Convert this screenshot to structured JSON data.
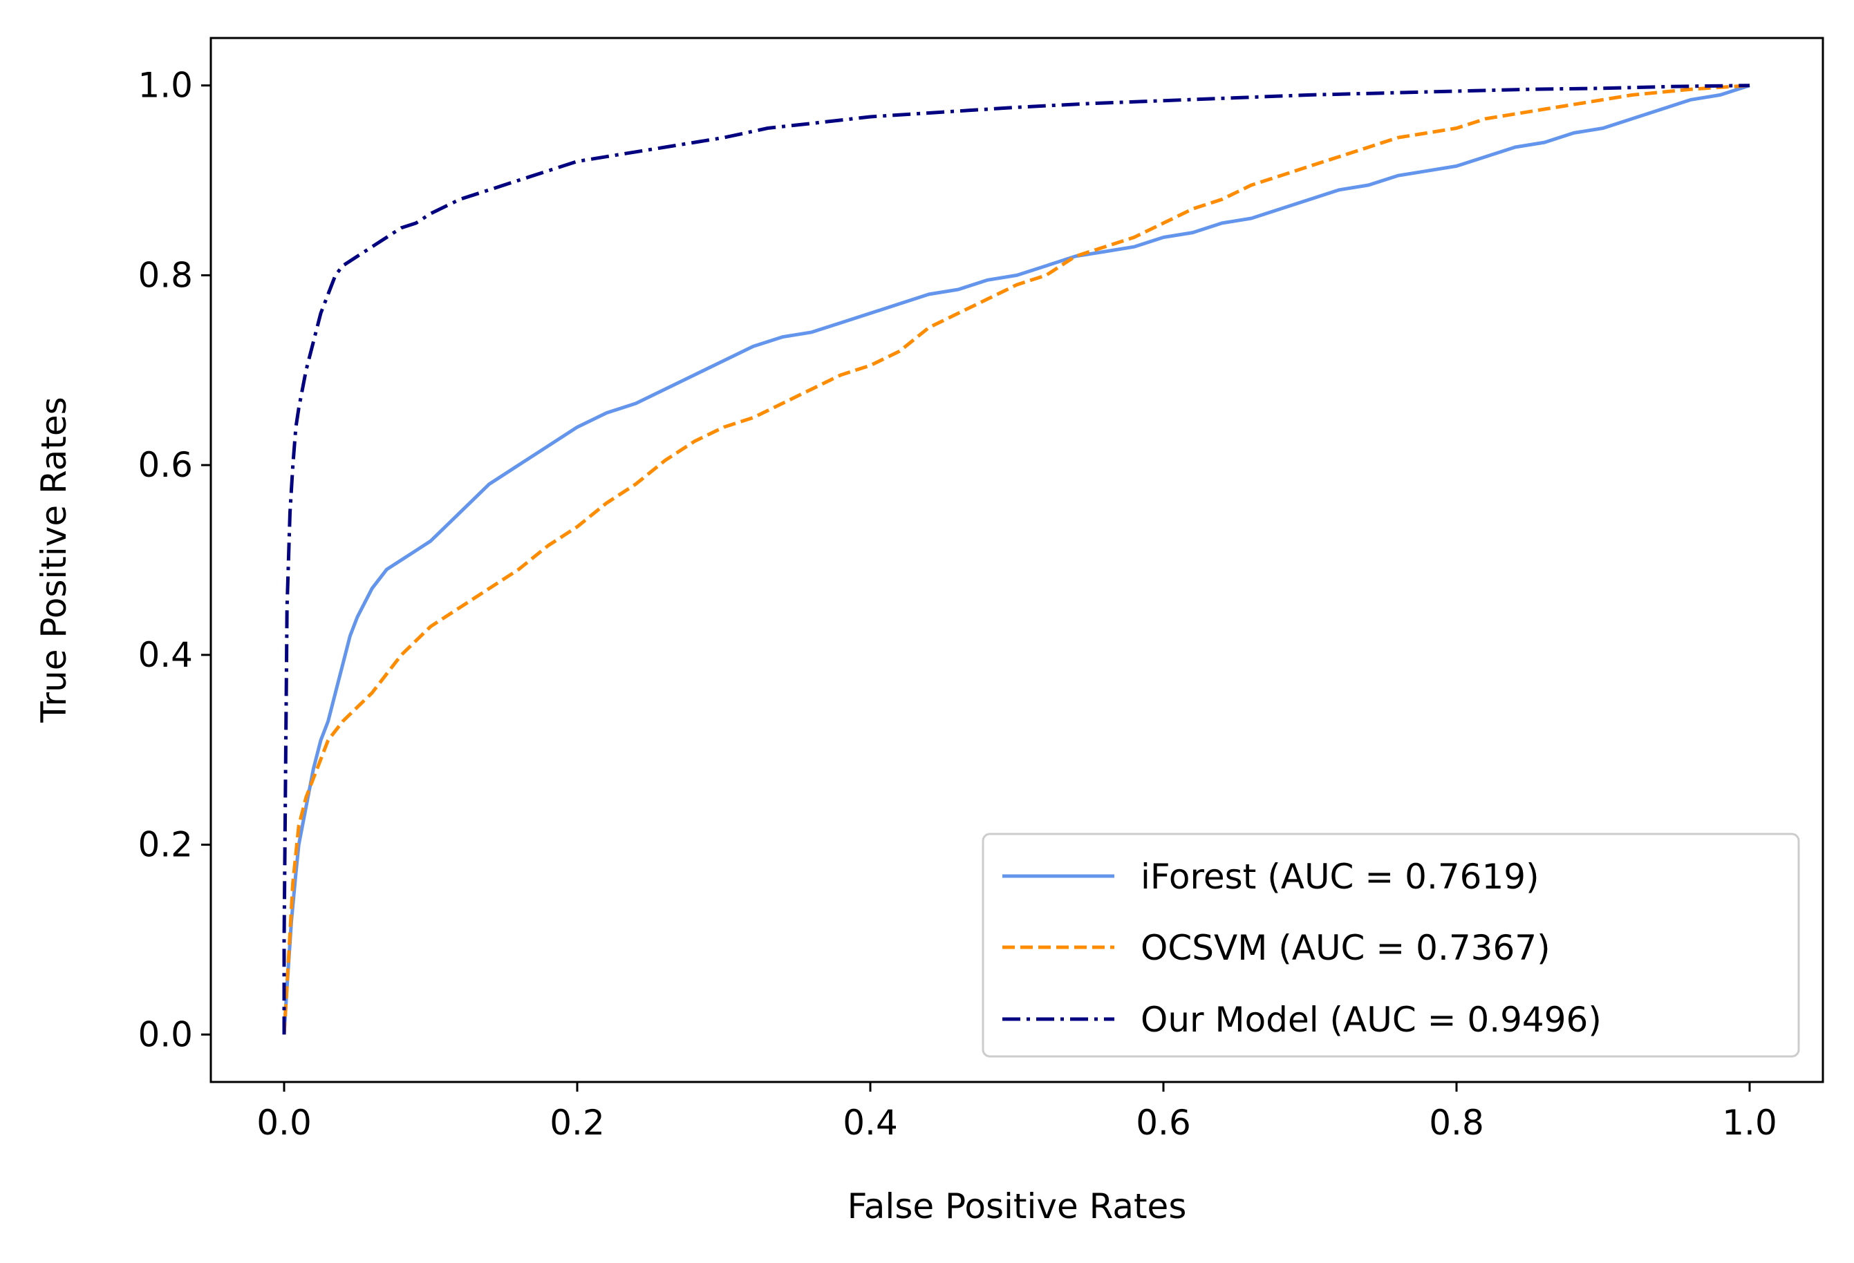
{
  "chart_data": {
    "type": "line",
    "title": "",
    "xlabel": "False Positive Rates",
    "ylabel": "True Positive Rates",
    "xlim": [
      -0.05,
      1.05
    ],
    "ylim": [
      -0.05,
      1.05
    ],
    "xticks": [
      "0.0",
      "0.2",
      "0.4",
      "0.6",
      "0.8",
      "1.0"
    ],
    "yticks": [
      "0.0",
      "0.2",
      "0.4",
      "0.6",
      "0.8",
      "1.0"
    ],
    "xtick_values": [
      0.0,
      0.2,
      0.4,
      0.6,
      0.8,
      1.0
    ],
    "ytick_values": [
      0.0,
      0.2,
      0.4,
      0.6,
      0.8,
      1.0
    ],
    "grid": false,
    "legend_position": "lower-right",
    "series": [
      {
        "name": "iForest (AUC = 0.7619)",
        "color": "#6495ED",
        "style": "solid",
        "x": [
          0.0,
          0.002,
          0.005,
          0.008,
          0.01,
          0.015,
          0.02,
          0.025,
          0.03,
          0.035,
          0.04,
          0.045,
          0.05,
          0.06,
          0.07,
          0.08,
          0.09,
          0.1,
          0.12,
          0.14,
          0.16,
          0.18,
          0.2,
          0.22,
          0.24,
          0.26,
          0.28,
          0.3,
          0.32,
          0.34,
          0.36,
          0.38,
          0.4,
          0.42,
          0.44,
          0.46,
          0.48,
          0.5,
          0.52,
          0.54,
          0.56,
          0.58,
          0.6,
          0.62,
          0.64,
          0.66,
          0.68,
          0.7,
          0.72,
          0.74,
          0.76,
          0.78,
          0.8,
          0.82,
          0.84,
          0.86,
          0.88,
          0.9,
          0.92,
          0.94,
          0.96,
          0.98,
          1.0
        ],
        "y": [
          0.0,
          0.05,
          0.12,
          0.17,
          0.2,
          0.24,
          0.28,
          0.31,
          0.33,
          0.36,
          0.39,
          0.42,
          0.44,
          0.47,
          0.49,
          0.5,
          0.51,
          0.52,
          0.55,
          0.58,
          0.6,
          0.62,
          0.64,
          0.655,
          0.665,
          0.68,
          0.695,
          0.71,
          0.725,
          0.735,
          0.74,
          0.75,
          0.76,
          0.77,
          0.78,
          0.785,
          0.795,
          0.8,
          0.81,
          0.82,
          0.825,
          0.83,
          0.84,
          0.845,
          0.855,
          0.86,
          0.87,
          0.88,
          0.89,
          0.895,
          0.905,
          0.91,
          0.915,
          0.925,
          0.935,
          0.94,
          0.95,
          0.955,
          0.965,
          0.975,
          0.985,
          0.99,
          1.0
        ]
      },
      {
        "name": "OCSVM (AUC = 0.7367)",
        "color": "#FF8C00",
        "style": "dashed",
        "x": [
          0.0,
          0.003,
          0.006,
          0.01,
          0.015,
          0.02,
          0.025,
          0.03,
          0.04,
          0.05,
          0.06,
          0.07,
          0.08,
          0.1,
          0.12,
          0.14,
          0.16,
          0.18,
          0.2,
          0.22,
          0.24,
          0.26,
          0.28,
          0.3,
          0.32,
          0.34,
          0.36,
          0.38,
          0.4,
          0.42,
          0.44,
          0.46,
          0.48,
          0.5,
          0.52,
          0.54,
          0.56,
          0.58,
          0.6,
          0.62,
          0.64,
          0.66,
          0.68,
          0.7,
          0.72,
          0.74,
          0.76,
          0.78,
          0.8,
          0.82,
          0.84,
          0.86,
          0.88,
          0.9,
          0.92,
          0.94,
          0.96,
          0.98,
          1.0
        ],
        "y": [
          0.0,
          0.08,
          0.16,
          0.22,
          0.25,
          0.27,
          0.29,
          0.31,
          0.33,
          0.345,
          0.36,
          0.38,
          0.4,
          0.43,
          0.45,
          0.47,
          0.49,
          0.515,
          0.535,
          0.56,
          0.58,
          0.605,
          0.625,
          0.64,
          0.65,
          0.665,
          0.68,
          0.695,
          0.705,
          0.72,
          0.745,
          0.76,
          0.775,
          0.79,
          0.8,
          0.82,
          0.83,
          0.84,
          0.855,
          0.87,
          0.88,
          0.895,
          0.905,
          0.915,
          0.925,
          0.935,
          0.945,
          0.95,
          0.955,
          0.965,
          0.97,
          0.975,
          0.98,
          0.985,
          0.99,
          0.993,
          0.996,
          0.998,
          1.0
        ]
      },
      {
        "name": "Our Model (AUC = 0.9496)",
        "color": "#000080",
        "style": "dashdot",
        "x": [
          0.0,
          0.0,
          0.002,
          0.004,
          0.006,
          0.008,
          0.01,
          0.015,
          0.02,
          0.025,
          0.03,
          0.035,
          0.04,
          0.05,
          0.06,
          0.07,
          0.08,
          0.09,
          0.1,
          0.12,
          0.14,
          0.16,
          0.18,
          0.2,
          0.22,
          0.24,
          0.26,
          0.28,
          0.3,
          0.33,
          0.36,
          0.4,
          0.45,
          0.5,
          0.55,
          0.6,
          0.65,
          0.7,
          0.75,
          0.8,
          0.85,
          0.9,
          0.95,
          1.0
        ],
        "y": [
          0.0,
          0.1,
          0.45,
          0.55,
          0.6,
          0.64,
          0.66,
          0.7,
          0.73,
          0.76,
          0.78,
          0.8,
          0.81,
          0.82,
          0.83,
          0.84,
          0.85,
          0.855,
          0.865,
          0.88,
          0.89,
          0.9,
          0.91,
          0.92,
          0.925,
          0.93,
          0.935,
          0.94,
          0.945,
          0.955,
          0.96,
          0.967,
          0.972,
          0.977,
          0.981,
          0.984,
          0.987,
          0.99,
          0.992,
          0.994,
          0.996,
          0.997,
          0.999,
          1.0
        ]
      }
    ]
  }
}
